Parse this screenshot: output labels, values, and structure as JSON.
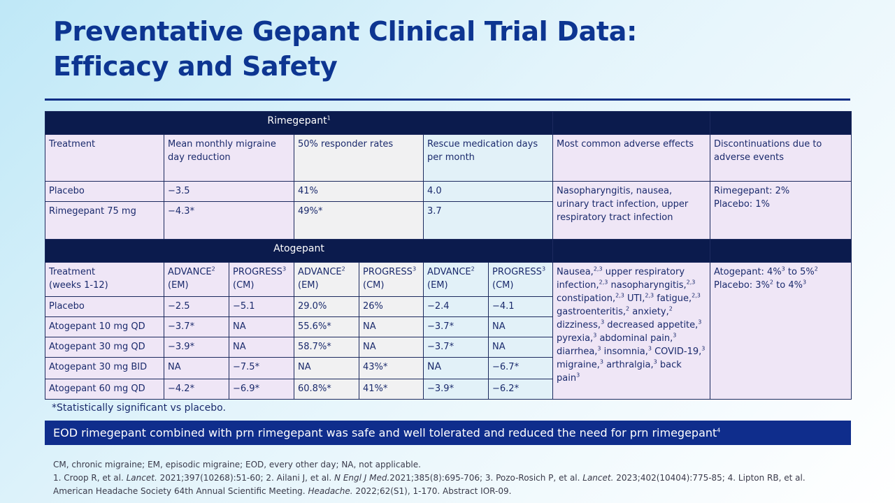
{
  "title": {
    "line1": "Preventative Gepant Clinical Trial Data:",
    "line2": "Efficacy and Safety"
  },
  "rimegepant": {
    "header": "Rimegepant",
    "header_sup": "1",
    "col_headers": {
      "treatment": "Treatment",
      "mean": "Mean monthly migraine day reduction",
      "responder": "50% responder rates",
      "rescue": "Rescue medication days per month",
      "adverse": "Most common  adverse effects",
      "discontinuation": "Discontinuations due to adverse events"
    },
    "rows": [
      {
        "treatment": "Placebo",
        "mean": "−3.5",
        "responder": "41%",
        "rescue": "4.0"
      },
      {
        "treatment": "Rimegepant 75 mg",
        "mean": "−4.3*",
        "responder": "49%*",
        "rescue": "3.7"
      }
    ],
    "adverse": "Nasopharyngitis, nausea, urinary tract infection, upper respiratory tract infection",
    "discontinuation_line1": "Rimegepant: 2%",
    "discontinuation_line2": "Placebo: 1%"
  },
  "atogepant": {
    "header": "Atogepant",
    "treatment_line1": "Treatment",
    "treatment_line2": "(weeks 1-12)",
    "study_advance": "ADVANCE",
    "study_progress": "PROGRESS",
    "sup_advance": "2",
    "sup_progress": "3",
    "em": "(EM)",
    "cm": "(CM)",
    "rows": [
      {
        "treatment": "Placebo",
        "v": [
          "−2.5",
          "−5.1",
          "29.0%",
          "26%",
          "−2.4",
          "−4.1"
        ]
      },
      {
        "treatment": "Atogepant 10 mg QD",
        "v": [
          "−3.7*",
          "NA",
          "55.6%*",
          "NA",
          "−3.7*",
          "NA"
        ]
      },
      {
        "treatment": "Atogepant 30 mg QD",
        "v": [
          "−3.9*",
          "NA",
          "58.7%*",
          "NA",
          "−3.7*",
          "NA"
        ]
      },
      {
        "treatment": "Atogepant 30 mg BID",
        "v": [
          "NA",
          "−7.5*",
          "NA",
          "43%*",
          "NA",
          "−6.7*"
        ]
      },
      {
        "treatment": "Atogepant 60 mg QD",
        "v": [
          "−4.2*",
          "−6.9*",
          "60.8%*",
          "41%*",
          "−3.9*",
          "−6.2*"
        ]
      }
    ],
    "adverse": {
      "nausea": "Nausea,",
      "upper_resp": "upper respiratory infection,",
      "naso": "nasopharyngitis,",
      "constipation": "constipation,",
      "uti": "UTI,",
      "fatigue": "fatigue,",
      "gastro": "gastroenteritis,",
      "anxiety": "anxiety,",
      "dizziness": "dizziness,",
      "appetite": "decreased appetite,",
      "pyrexia": "pyrexia,",
      "abdominal": "abdominal pain,",
      "diarrhea": "diarrhea,",
      "insomnia": "insomnia,",
      "covid": "COVID-19,",
      "migraine": "migraine,",
      "arthralgia": "arthralgia,",
      "back": "back pain",
      "sup23": "2,3",
      "sup2": "2",
      "sup3": "3"
    },
    "discontinuation": {
      "line1_a": "Atogepant: 4%",
      "line1_b": " to 5%",
      "line2_a": "Placebo: 3%",
      "line2_b": " to 4%"
    }
  },
  "footnote": "*Statistically significant vs placebo.",
  "banner": {
    "text": "EOD rimegepant combined with prn rimegepant was safe and well tolerated and reduced the need for prn rimegepant",
    "sup": "4"
  },
  "references": {
    "abbrev": "CM, chronic migraine; EM, episodic migraine; EOD, every other day; NA, not applicable.",
    "r1_a": "1. Croop R, et al. ",
    "r1_journal": "Lancet.",
    "r1_b": " 2021;397(10268):51-60;  2. Ailani J, et al. ",
    "r2_journal": "N Engl J Med.",
    "r2_b": "2021;385(8):695-706;  3. Pozo-Rosich P, et al. ",
    "r3_journal": "Lancet.",
    "r3_b": " 2023;402(10404):775-85;  4. Lipton RB, et al.",
    "r4_a": "American Headache Society 64th Annual Scientific Meeting. ",
    "r4_journal": "Headache.",
    "r4_b": " 2022;62(S1), 1-170. Abstract IOR-09."
  }
}
